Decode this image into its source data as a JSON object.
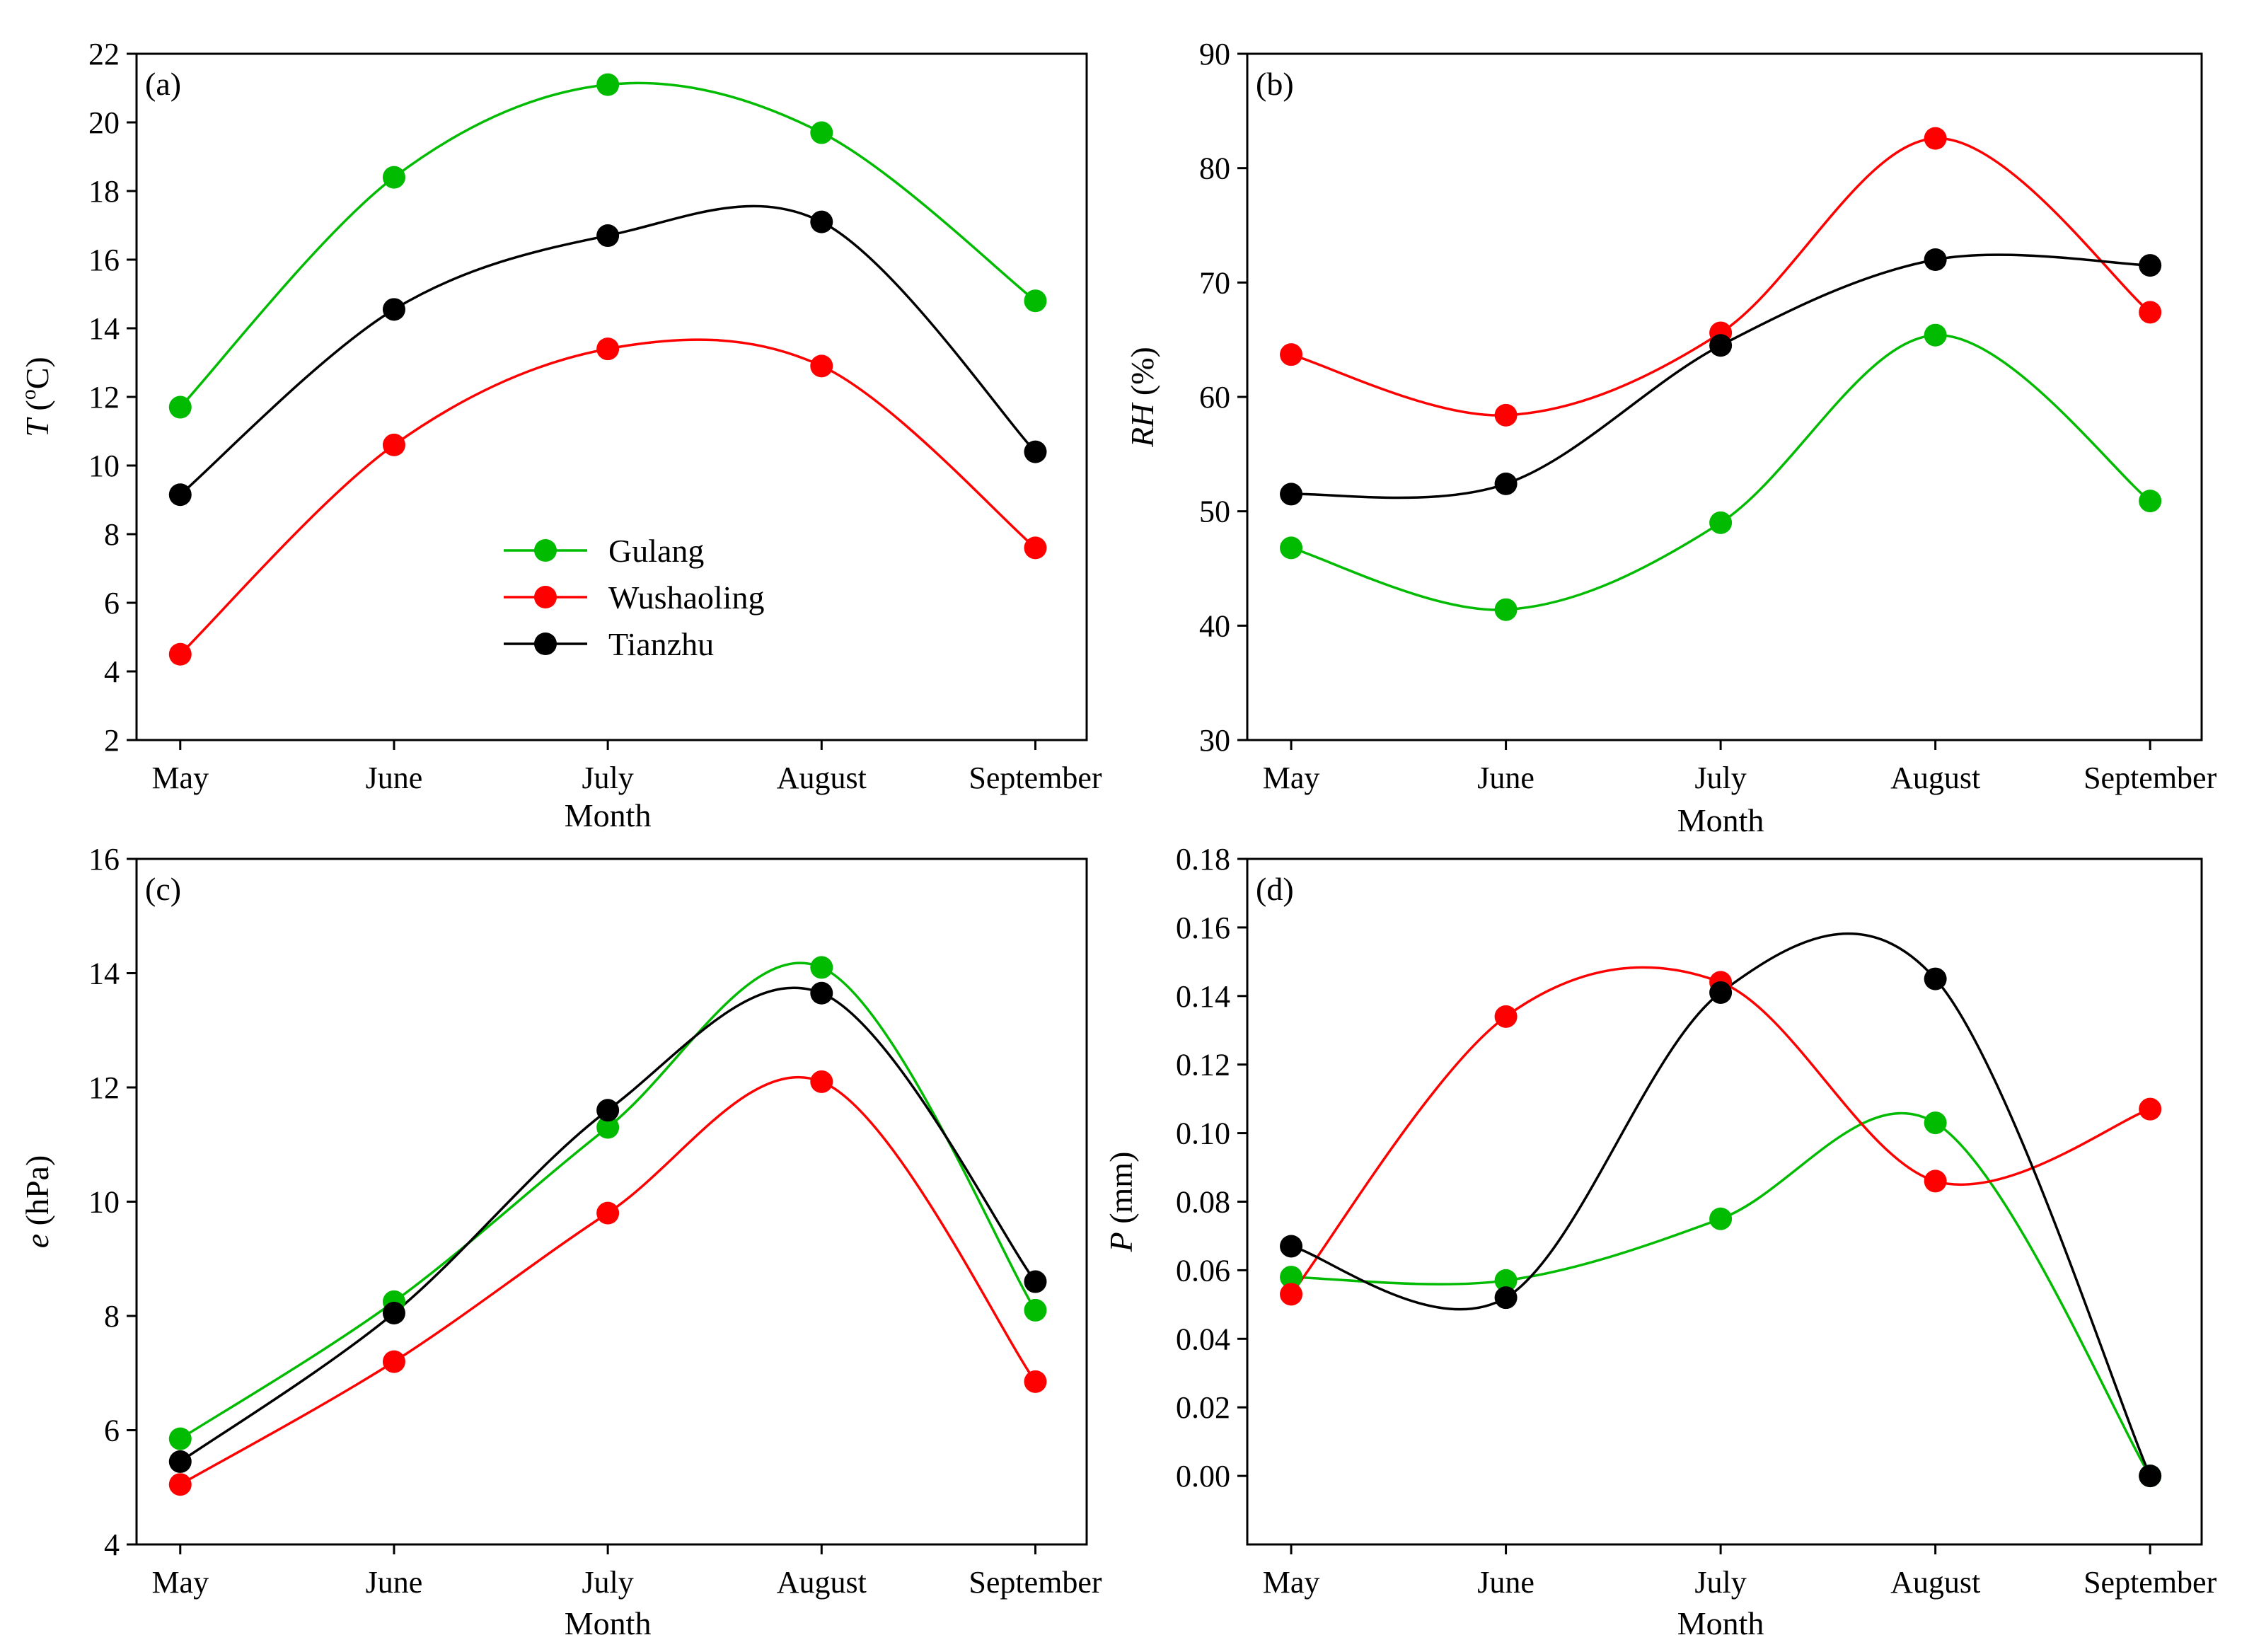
{
  "series_styles": [
    {
      "name": "Gulang",
      "color": "#00bb00"
    },
    {
      "name": "Wushaoling",
      "color": "#ff0000"
    },
    {
      "name": "Tianzhu",
      "color": "#000000"
    }
  ],
  "chart_data": [
    {
      "type": "line",
      "panel": "(a)",
      "categories": [
        "May",
        "June",
        "July",
        "August",
        "September"
      ],
      "xlabel": "Month",
      "ylabel_italic": "T",
      "ylabel_sup": "o",
      "ylabel_unit": "C",
      "ylim": [
        2,
        22
      ],
      "yticks": [
        "2",
        "4",
        "6",
        "8",
        "10",
        "12",
        "14",
        "16",
        "18",
        "20",
        "22"
      ],
      "legend": "inside-center-left",
      "series": [
        {
          "name": "Gulang",
          "values": [
            11.7,
            18.4,
            21.1,
            19.7,
            14.8
          ]
        },
        {
          "name": "Wushaoling",
          "values": [
            4.5,
            10.6,
            13.4,
            12.9,
            7.6
          ]
        },
        {
          "name": "Tianzhu",
          "values": [
            9.15,
            14.55,
            16.7,
            17.1,
            10.4
          ]
        }
      ]
    },
    {
      "type": "line",
      "panel": "(b)",
      "categories": [
        "May",
        "June",
        "July",
        "August",
        "September"
      ],
      "xlabel": "Month",
      "ylabel_italic": "RH",
      "ylabel_unit": " (%)",
      "ylim": [
        30,
        90
      ],
      "yticks": [
        "30",
        "40",
        "50",
        "60",
        "70",
        "80",
        "90"
      ],
      "series": [
        {
          "name": "Gulang",
          "values": [
            46.8,
            41.4,
            49.0,
            65.4,
            50.9
          ]
        },
        {
          "name": "Wushaoling",
          "values": [
            63.7,
            58.4,
            65.6,
            82.6,
            67.4
          ]
        },
        {
          "name": "Tianzhu",
          "values": [
            51.5,
            52.4,
            64.5,
            72.0,
            71.5
          ]
        }
      ]
    },
    {
      "type": "line",
      "panel": "(c)",
      "categories": [
        "May",
        "June",
        "July",
        "August",
        "September"
      ],
      "xlabel": "Month",
      "ylabel_italic": "e",
      "ylabel_unit": " (hPa)",
      "ylim": [
        4,
        16
      ],
      "yticks": [
        "4",
        "6",
        "8",
        "10",
        "12",
        "14",
        "16"
      ],
      "series": [
        {
          "name": "Gulang",
          "values": [
            5.85,
            8.25,
            11.3,
            14.1,
            8.1
          ]
        },
        {
          "name": "Wushaoling",
          "values": [
            5.05,
            7.2,
            9.8,
            12.1,
            6.85
          ]
        },
        {
          "name": "Tianzhu",
          "values": [
            5.45,
            8.05,
            11.6,
            13.65,
            8.6
          ]
        }
      ]
    },
    {
      "type": "line",
      "panel": "(d)",
      "categories": [
        "May",
        "June",
        "July",
        "August",
        "September"
      ],
      "xlabel": "Month",
      "ylabel_italic": "P",
      "ylabel_unit": " (mm)",
      "ylim": [
        -0.02,
        0.18
      ],
      "yticks": [
        "0.00",
        "0.02",
        "0.04",
        "0.06",
        "0.08",
        "0.10",
        "0.12",
        "0.14",
        "0.16",
        "0.18"
      ],
      "series": [
        {
          "name": "Gulang",
          "values": [
            0.058,
            0.057,
            0.075,
            0.103,
            0.0
          ]
        },
        {
          "name": "Wushaoling",
          "values": [
            0.053,
            0.134,
            0.144,
            0.086,
            0.107
          ]
        },
        {
          "name": "Tianzhu",
          "values": [
            0.067,
            0.052,
            0.141,
            0.145,
            0.0
          ]
        }
      ]
    }
  ]
}
